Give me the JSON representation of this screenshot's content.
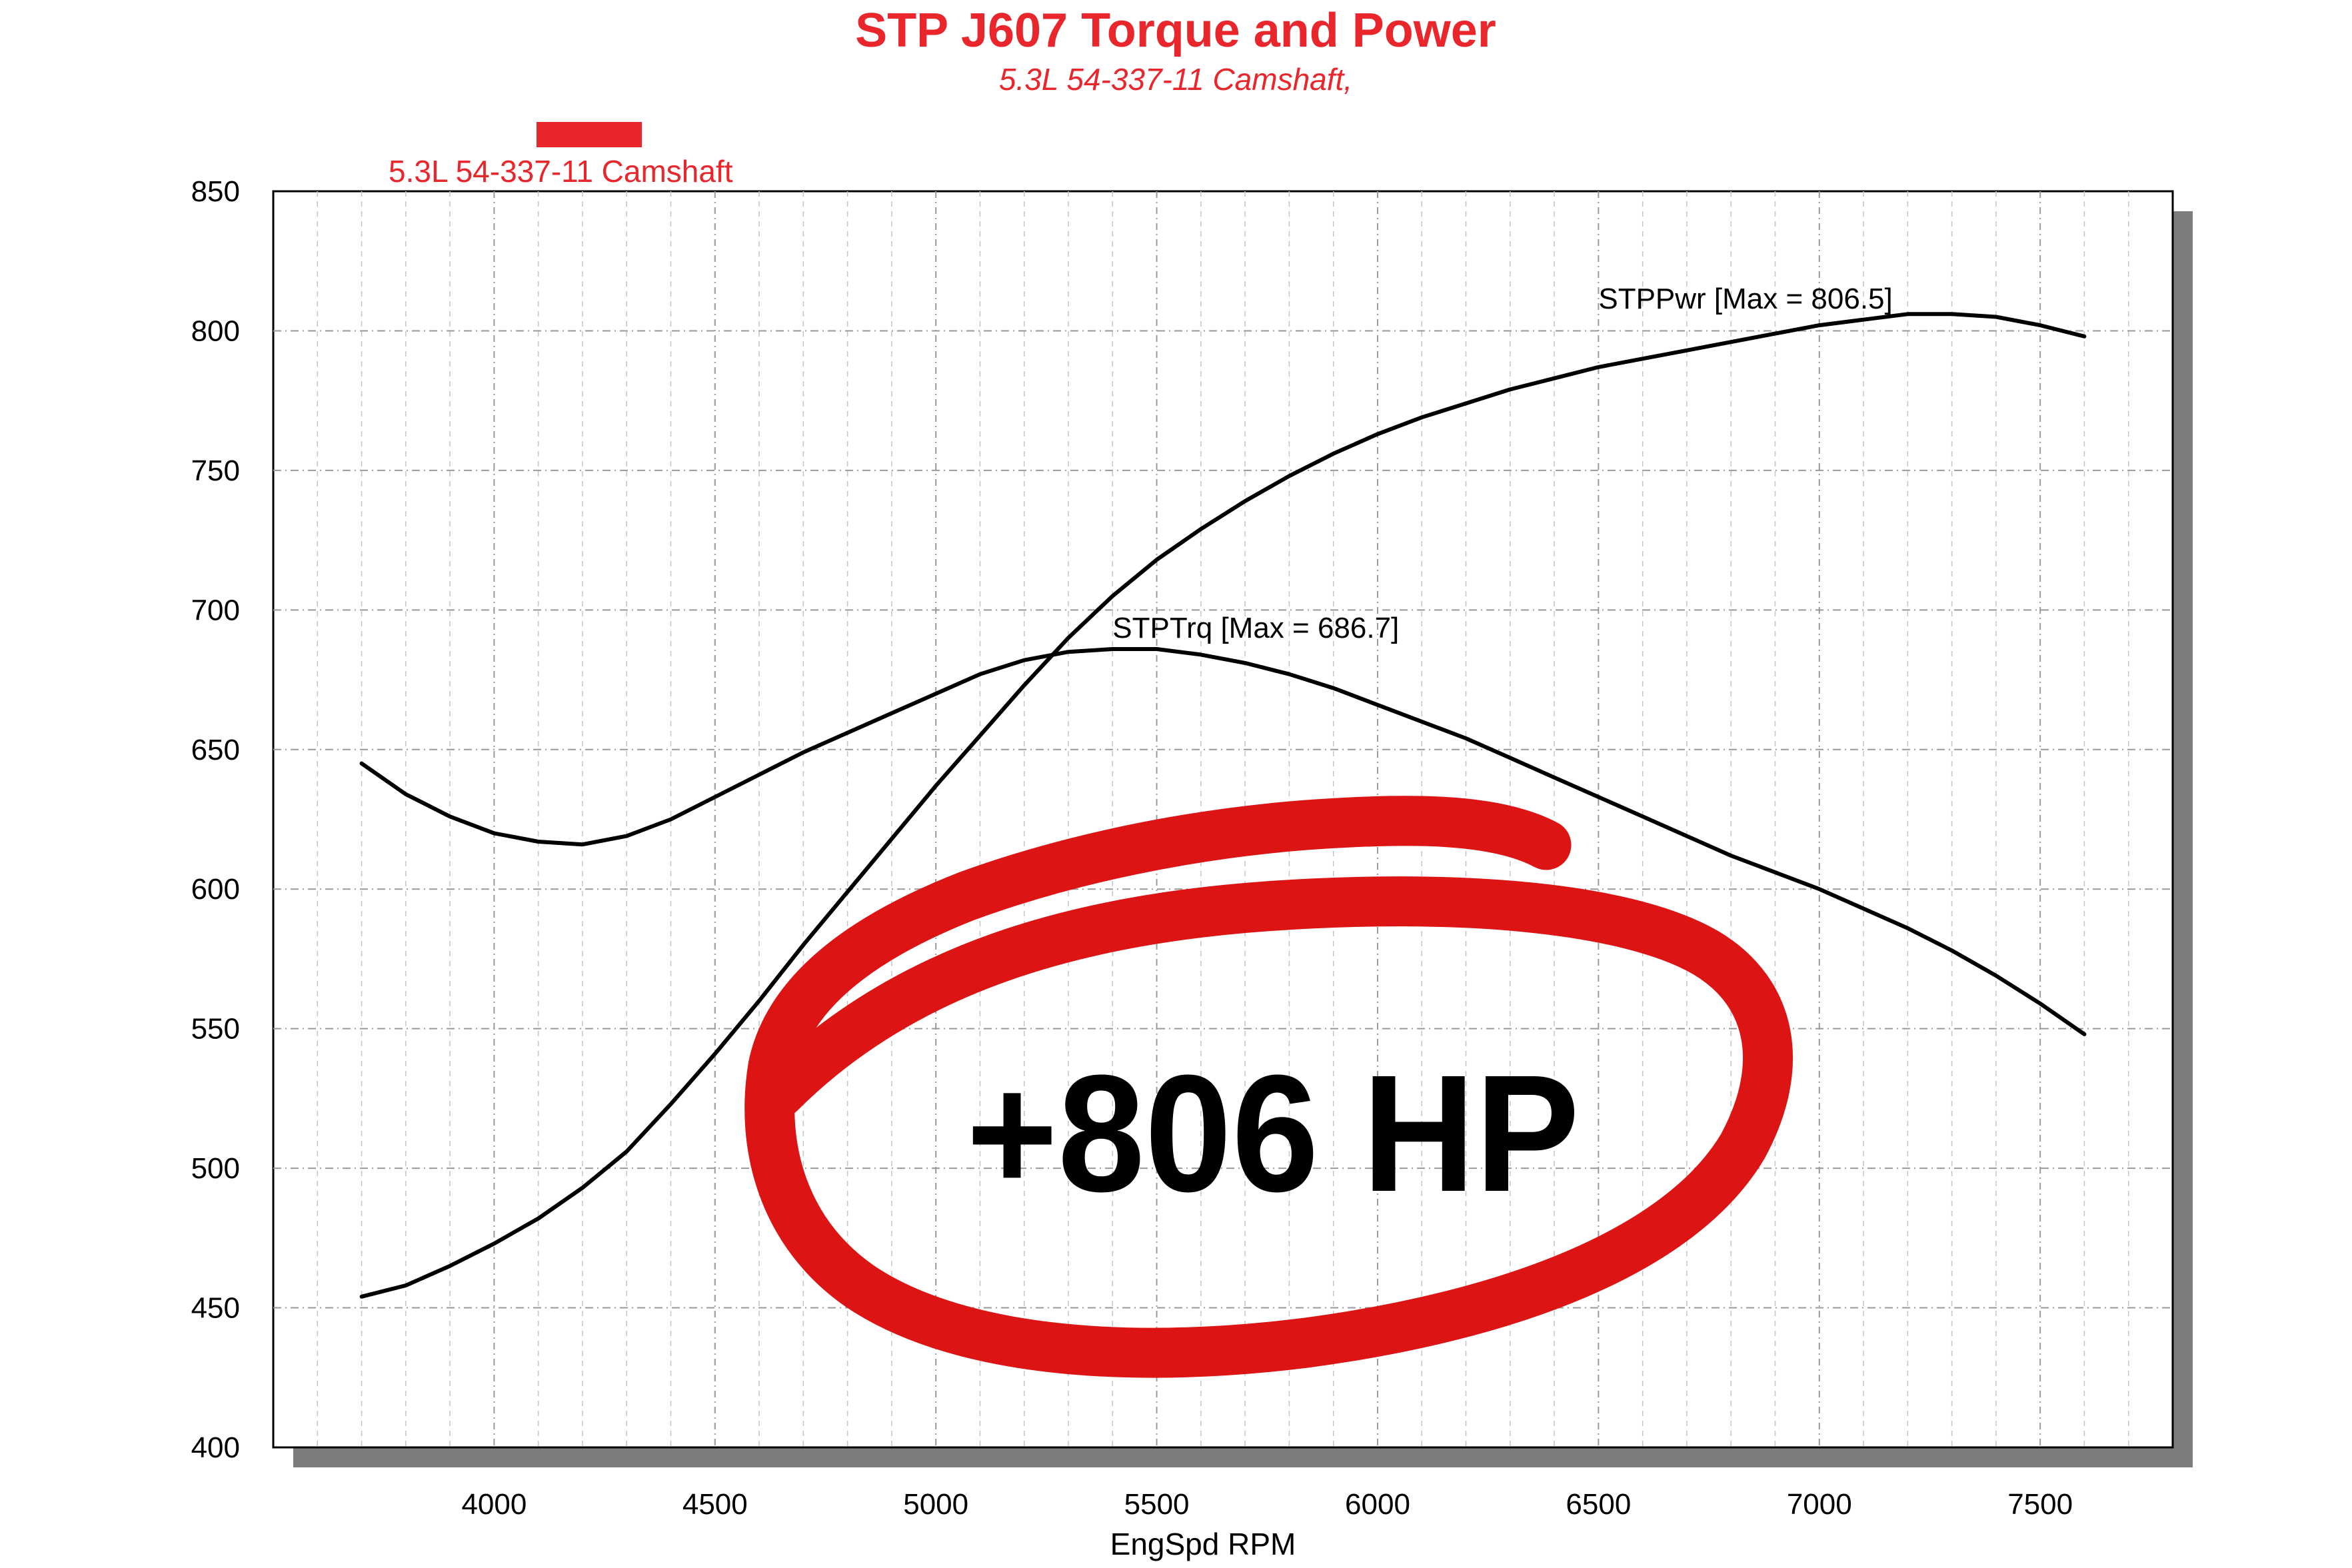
{
  "chart_data": {
    "type": "line",
    "title": "STP J607 Torque and Power",
    "subtitle": "5.3L 54-337-11 Camshaft,",
    "legend": [
      {
        "label": "5.3L 54-337-11 Camshaft",
        "color": "#e8262b"
      }
    ],
    "legend_position": "top-left",
    "xlabel": "EngSpd RPM",
    "ylabel": "",
    "xlim": [
      3500,
      7800
    ],
    "ylim": [
      400,
      850
    ],
    "xticks": [
      4000,
      4500,
      5000,
      5500,
      6000,
      6500,
      7000,
      7500
    ],
    "yticks": [
      400,
      450,
      500,
      550,
      600,
      650,
      700,
      750,
      800,
      850
    ],
    "grid": true,
    "series": [
      {
        "name": "STPTrq [Max = 686.7]",
        "color": "#000000",
        "x": [
          3700,
          3800,
          3900,
          4000,
          4100,
          4200,
          4300,
          4400,
          4500,
          4600,
          4700,
          4800,
          4900,
          5000,
          5100,
          5200,
          5300,
          5400,
          5500,
          5600,
          5700,
          5800,
          5900,
          6000,
          6100,
          6200,
          6300,
          6400,
          6500,
          6600,
          6700,
          6800,
          6900,
          7000,
          7100,
          7200,
          7300,
          7400,
          7500,
          7600
        ],
        "values": [
          645,
          634,
          626,
          620,
          617,
          616,
          619,
          625,
          633,
          641,
          649,
          656,
          663,
          670,
          677,
          682,
          685,
          686,
          686,
          684,
          681,
          677,
          672,
          666,
          660,
          654,
          647,
          640,
          633,
          626,
          619,
          612,
          606,
          600,
          593,
          586,
          578,
          569,
          559,
          548
        ]
      },
      {
        "name": "STPPwr [Max = 806.5]",
        "color": "#000000",
        "x": [
          3700,
          3800,
          3900,
          4000,
          4100,
          4200,
          4300,
          4400,
          4500,
          4600,
          4700,
          4800,
          4900,
          5000,
          5100,
          5200,
          5300,
          5400,
          5500,
          5600,
          5700,
          5800,
          5900,
          6000,
          6100,
          6200,
          6300,
          6400,
          6500,
          6600,
          6700,
          6800,
          6900,
          7000,
          7100,
          7200,
          7300,
          7400,
          7500,
          7600
        ],
        "values": [
          454,
          458,
          465,
          473,
          482,
          493,
          506,
          523,
          541,
          560,
          580,
          599,
          618,
          637,
          655,
          673,
          690,
          705,
          718,
          729,
          739,
          748,
          756,
          763,
          769,
          774,
          779,
          783,
          787,
          790,
          793,
          796,
          799,
          802,
          804,
          806,
          806,
          805,
          802,
          798
        ]
      }
    ],
    "annotations": [
      {
        "text": "STPPwr [Max = 806.5]",
        "x": 6500,
        "y": 808
      },
      {
        "text": "STPTrq [Max = 686.7]",
        "x": 5400,
        "y": 690
      }
    ],
    "callout": {
      "text": "+806 HP",
      "color": "#dd1414"
    }
  }
}
